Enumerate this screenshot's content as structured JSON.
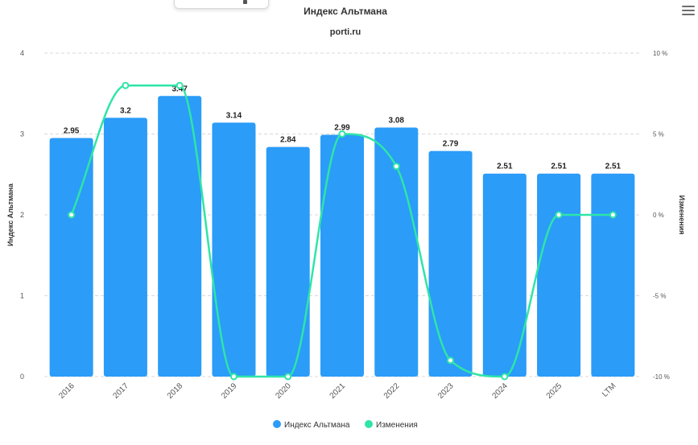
{
  "chart_data": {
    "type": "bar",
    "title": "Индекс Альтмана",
    "subtitle": "porti.ru",
    "categories": [
      "2016",
      "2017",
      "2018",
      "2019",
      "2020",
      "2021",
      "2022",
      "2023",
      "2024",
      "2025",
      "LTM"
    ],
    "series": [
      {
        "name": "Индекс Альтмана",
        "type": "bar",
        "axis": "left",
        "color": "#2b9cf8",
        "values": [
          2.95,
          3.2,
          3.47,
          3.14,
          2.84,
          2.99,
          3.08,
          2.79,
          2.51,
          2.51,
          2.51
        ],
        "labels": [
          "2.95",
          "3.2",
          "3.47",
          "3.14",
          "2.84",
          "2.99",
          "3.08",
          "2.79",
          "2.51",
          "2.51",
          "2.51"
        ]
      },
      {
        "name": "Изменения",
        "type": "line",
        "axis": "right",
        "color": "#2ee5a8",
        "values": [
          0,
          8,
          8,
          -10,
          -10,
          5,
          3,
          -9,
          -10,
          0,
          0
        ]
      }
    ],
    "y_left": {
      "label": "Индекс Альтмана",
      "min": 0,
      "max": 4,
      "ticks": [
        0,
        1,
        2,
        3,
        4
      ],
      "tick_labels": [
        "0",
        "1",
        "2",
        "3",
        "4"
      ]
    },
    "y_right": {
      "label": "Изменения",
      "min": -10,
      "max": 10,
      "ticks": [
        -10,
        -5,
        0,
        5,
        10
      ],
      "tick_labels": [
        "-10 %",
        "-5 %",
        "0 %",
        "5 %",
        "10 %"
      ]
    },
    "grid": true,
    "legend_position": "bottom-center"
  },
  "ui": {
    "menu_icon": "hamburger-menu-icon"
  }
}
